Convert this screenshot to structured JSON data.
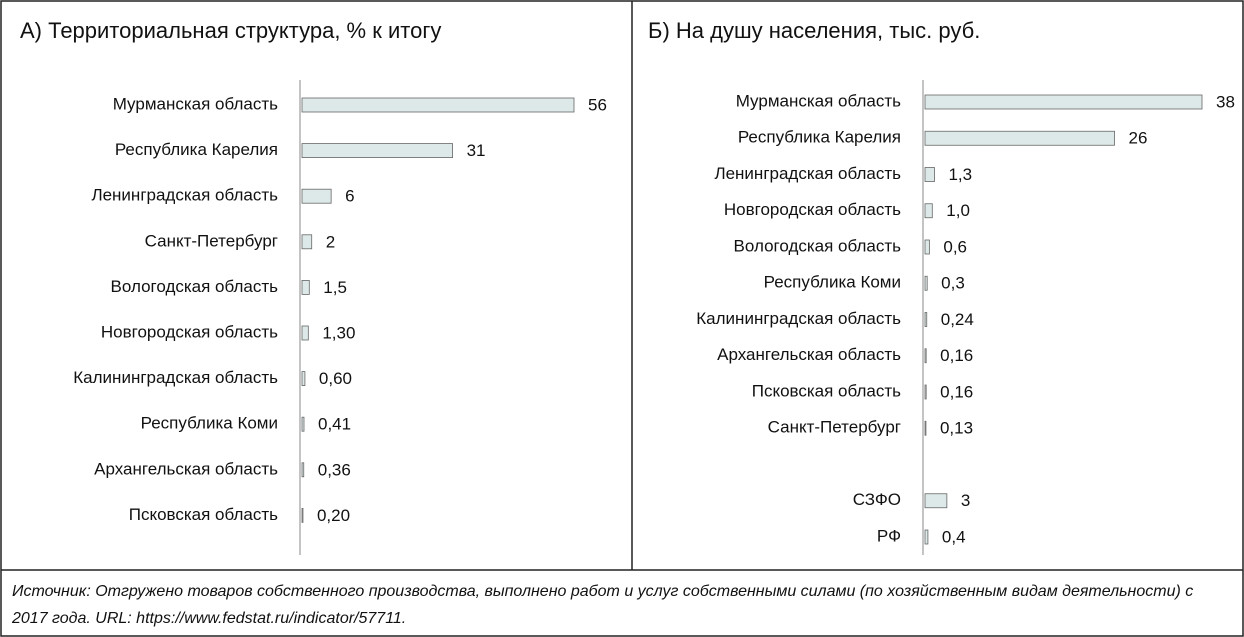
{
  "chart_data": [
    {
      "type": "bar",
      "orientation": "horizontal",
      "title": "А) Территориальная структура, % к итогу",
      "categories": [
        "Мурманская область",
        "Республика Карелия",
        "Ленинградская область",
        "Санкт-Петербург",
        "Вологодская область",
        "Новгородская область",
        "Калининградская область",
        "Республика Коми",
        "Архангельская область",
        "Псковская область"
      ],
      "values": [
        56,
        31,
        6,
        2,
        1.5,
        1.3,
        0.6,
        0.41,
        0.36,
        0.2
      ],
      "value_labels": [
        "56",
        "31",
        "6",
        "2",
        "1,5",
        "1,30",
        "0,60",
        "0,41",
        "0,36",
        "0,20"
      ],
      "color": "#dce9e8",
      "xlim": [
        0,
        56
      ]
    },
    {
      "type": "bar",
      "orientation": "horizontal",
      "title": "Б) На душу населения, тыс. руб.",
      "categories": [
        "Мурманская область",
        "Республика Карелия",
        "Ленинградская область",
        "Новгородская область",
        "Вологодская область",
        "Республика Коми",
        "Калининградская область",
        "Архангельская область",
        "Псковская область",
        "Санкт-Петербург",
        null,
        "СЗФО",
        "РФ"
      ],
      "values": [
        38,
        26,
        1.3,
        1.0,
        0.6,
        0.3,
        0.24,
        0.16,
        0.16,
        0.13,
        null,
        3,
        0.4
      ],
      "value_labels": [
        "38",
        "26",
        "1,3",
        "1,0",
        "0,6",
        "0,3",
        "0,24",
        "0,16",
        "0,16",
        "0,13",
        null,
        "3",
        "0,4"
      ],
      "color": "#dce9e8",
      "xlim": [
        0,
        38
      ]
    }
  ],
  "source": "Источник: Отгружено товаров собственного производства, выполнено работ и услуг собственными силами (по хозяйственным видам деятельности) с 2017 года. URL: https://www.fedstat.ru/indicator/57711."
}
